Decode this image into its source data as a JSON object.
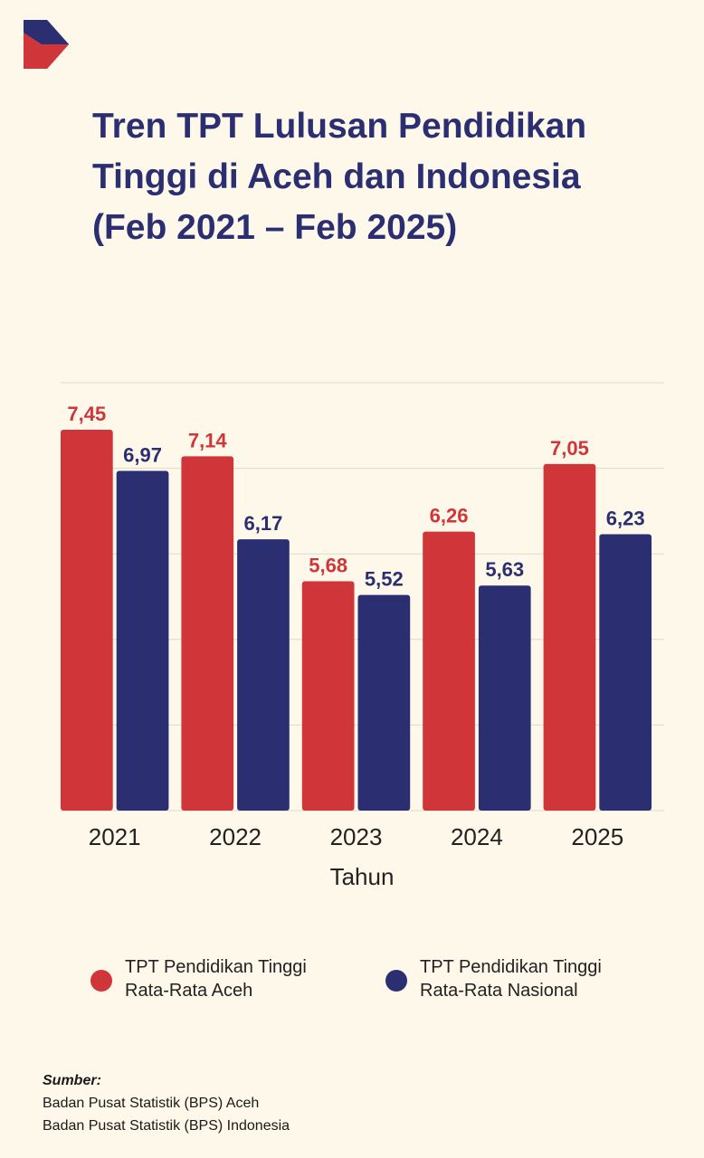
{
  "title_lines": [
    "Tren TPT Lulusan Pendidikan",
    "Tinggi di Aceh dan Indonesia",
    "(Feb 2021 – Feb 2025)"
  ],
  "colors": {
    "aceh": "#D0353A",
    "nasional": "#2B2F72",
    "background": "#FDF8E9",
    "grid": "#DDD8C8"
  },
  "chart_data": {
    "type": "bar",
    "title": "Tren TPT Lulusan Pendidikan Tinggi di Aceh dan Indonesia (Feb 2021 – Feb 2025)",
    "categories": [
      "2021",
      "2022",
      "2023",
      "2024",
      "2025"
    ],
    "series": [
      {
        "name": "TPT Pendidikan Tinggi Rata-Rata Aceh",
        "values": [
          7.45,
          7.14,
          5.68,
          6.26,
          7.05
        ],
        "labels": [
          "7,45",
          "7,14",
          "5,68",
          "6,26",
          "7,05"
        ]
      },
      {
        "name": "TPT Pendidikan Tinggi Rata-Rata Nasional",
        "values": [
          6.97,
          6.17,
          5.52,
          5.63,
          6.23
        ],
        "labels": [
          "6,97",
          "6,17",
          "5,52",
          "5,63",
          "6,23"
        ]
      }
    ],
    "xlabel": "Tahun",
    "ylabel": "",
    "ylim": [
      3.0,
      8.0
    ],
    "grid": true,
    "legend": "bottom"
  },
  "legend": [
    {
      "lines": [
        "TPT Pendidikan Tinggi",
        "Rata-Rata Aceh"
      ],
      "color": "#D0353A"
    },
    {
      "lines": [
        "TPT Pendidikan Tinggi",
        "Rata-Rata Nasional"
      ],
      "color": "#2B2F72"
    }
  ],
  "source": {
    "heading": "Sumber:",
    "lines": [
      "Badan Pusat Statistik (BPS) Aceh",
      "Badan Pusat Statistik (BPS) Indonesia"
    ]
  },
  "logo_icon": "play-arrow-logo-icon"
}
